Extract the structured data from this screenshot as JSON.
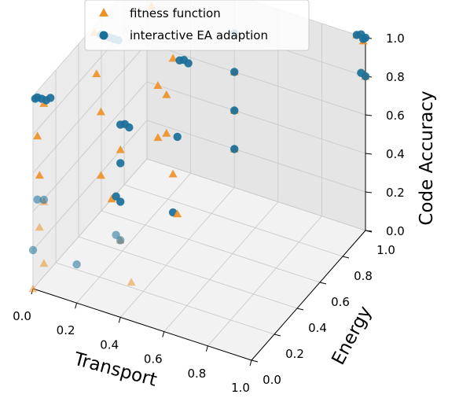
{
  "chart_data": {
    "type": "scatter3d",
    "xlabel": "Transport",
    "ylabel": "Energy",
    "zlabel": "Code Accuracy",
    "xlim": [
      0,
      1
    ],
    "ylim": [
      0,
      1
    ],
    "zlim": [
      0,
      1
    ],
    "xticks": [
      "0.0",
      "0.2",
      "0.4",
      "0.6",
      "0.8",
      "1.0"
    ],
    "yticks": [
      "0.0",
      "0.2",
      "0.4",
      "0.6",
      "0.8",
      "1.0"
    ],
    "zticks": [
      "0.0",
      "0.2",
      "0.4",
      "0.6",
      "0.8",
      "1.0"
    ],
    "grid": true,
    "legend_position": "top-left",
    "colors": {
      "fitness": "#ee9228",
      "interactive": "#1a6f99"
    },
    "series": [
      {
        "name": "fitness function",
        "marker": "triangle",
        "points": [
          [
            0.0,
            0.0,
            0.0
          ],
          [
            0.05,
            0.0,
            0.15
          ],
          [
            0.03,
            0.0,
            0.33
          ],
          [
            0.05,
            0.0,
            0.47
          ],
          [
            0.03,
            0.0,
            0.6
          ],
          [
            0.02,
            0.0,
            0.8
          ],
          [
            0.05,
            0.0,
            0.98
          ],
          [
            0.45,
            0.0,
            0.2
          ],
          [
            0.4,
            0.0,
            0.4
          ],
          [
            0.36,
            0.0,
            0.6
          ],
          [
            0.4,
            0.0,
            0.87
          ],
          [
            0.05,
            0.5,
            0.27
          ],
          [
            0.05,
            0.5,
            0.6
          ],
          [
            0.03,
            0.5,
            0.79
          ],
          [
            0.02,
            0.5,
            1.0
          ],
          [
            0.4,
            0.5,
            0.2
          ],
          [
            0.38,
            0.5,
            0.4
          ],
          [
            0.35,
            0.5,
            0.6
          ],
          [
            0.35,
            0.5,
            0.8
          ],
          [
            0.38,
            0.5,
            1.0
          ],
          [
            0.05,
            1.0,
            0.13
          ],
          [
            0.05,
            1.0,
            0.4
          ],
          [
            0.02,
            1.0,
            0.8
          ],
          [
            0.05,
            1.0,
            1.0
          ],
          [
            0.4,
            1.0,
            0.2
          ],
          [
            0.4,
            1.0,
            0.4
          ],
          [
            0.4,
            1.0,
            0.6
          ],
          [
            0.4,
            1.0,
            0.8
          ],
          [
            0.4,
            1.0,
            1.0
          ],
          [
            1.0,
            1.0,
            0.8
          ],
          [
            0.96,
            1.0,
            1.0
          ],
          [
            0.99,
            1.0,
            0.98
          ]
        ]
      },
      {
        "name": "interactive EA adaption",
        "marker": "circle",
        "points": [
          [
            0.0,
            0.0,
            0.2
          ],
          [
            0.02,
            0.0,
            0.47
          ],
          [
            0.02,
            0.0,
            1.0
          ],
          [
            0.04,
            0.0,
            1.0
          ],
          [
            0.06,
            0.0,
            1.0
          ],
          [
            0.08,
            0.0,
            1.02
          ],
          [
            0.01,
            0.0,
            0.99
          ],
          [
            0.05,
            0.0,
            0.48
          ],
          [
            0.2,
            0.0,
            0.2
          ],
          [
            0.4,
            0.0,
            0.4
          ],
          [
            0.38,
            0.0,
            0.42
          ],
          [
            0.4,
            0.0,
            0.6
          ],
          [
            0.38,
            0.0,
            0.62
          ],
          [
            0.4,
            0.0,
            0.8
          ],
          [
            0.4,
            0.0,
            1.0
          ],
          [
            0.42,
            0.0,
            1.01
          ],
          [
            0.44,
            0.0,
            1.0
          ],
          [
            0.05,
            0.5,
            1.0
          ],
          [
            0.07,
            0.5,
            1.0
          ],
          [
            0.09,
            0.5,
            1.0
          ],
          [
            0.11,
            0.5,
            1.0
          ],
          [
            0.13,
            0.5,
            1.0
          ],
          [
            0.38,
            0.5,
            0.2
          ],
          [
            0.4,
            0.5,
            0.6
          ],
          [
            0.41,
            0.5,
            1.0
          ],
          [
            0.43,
            0.5,
            1.01
          ],
          [
            0.45,
            0.5,
            1.0
          ],
          [
            0.05,
            1.0,
            1.0
          ],
          [
            0.07,
            1.0,
            1.0
          ],
          [
            0.09,
            1.0,
            1.01
          ],
          [
            0.11,
            1.0,
            1.0
          ],
          [
            0.13,
            1.0,
            1.0
          ],
          [
            0.4,
            1.0,
            0.2
          ],
          [
            0.4,
            1.0,
            0.4
          ],
          [
            0.4,
            1.0,
            0.6
          ],
          [
            0.4,
            1.0,
            0.8
          ],
          [
            0.4,
            1.0,
            1.0
          ],
          [
            0.96,
            1.0,
            1.0
          ],
          [
            0.98,
            1.0,
            1.01
          ],
          [
            1.0,
            1.0,
            1.0
          ],
          [
            0.99,
            1.0,
            0.99
          ],
          [
            1.0,
            1.0,
            0.8
          ],
          [
            0.98,
            1.0,
            0.81
          ]
        ]
      }
    ]
  }
}
